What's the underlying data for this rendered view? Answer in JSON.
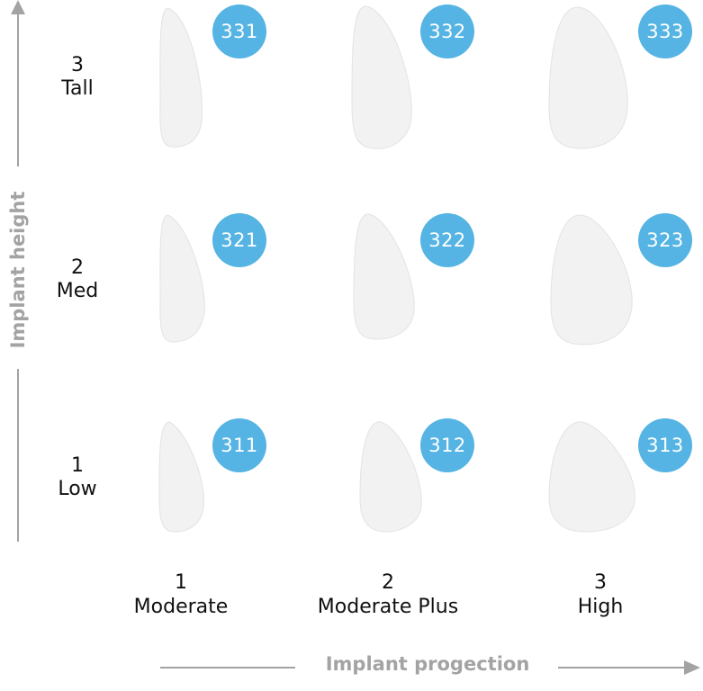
{
  "axes": {
    "y_title": "Implant height",
    "x_title": "Implant progection"
  },
  "rows": [
    {
      "number": "3",
      "name": "Tall"
    },
    {
      "number": "2",
      "name": "Med"
    },
    {
      "number": "1",
      "name": "Low"
    }
  ],
  "columns": [
    {
      "number": "1",
      "name": "Moderate"
    },
    {
      "number": "2",
      "name": "Moderate Plus"
    },
    {
      "number": "3",
      "name": "High"
    }
  ],
  "grid": [
    [
      "331",
      "332",
      "333"
    ],
    [
      "321",
      "322",
      "323"
    ],
    [
      "311",
      "312",
      "313"
    ]
  ],
  "colors": {
    "badge": "#55b4e3",
    "axis": "#a3a3a3",
    "implant": "#f2f2f2"
  }
}
